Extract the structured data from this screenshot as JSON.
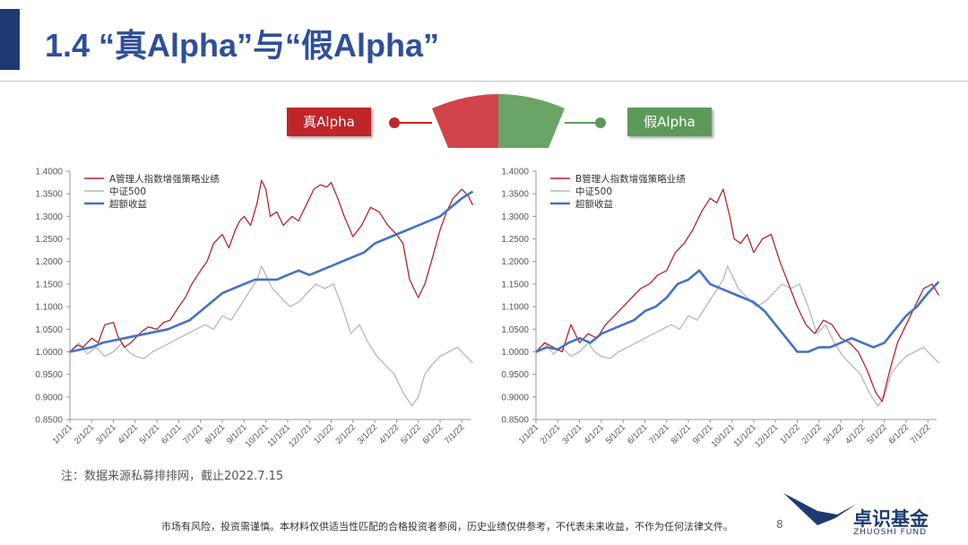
{
  "header": {
    "title": "1.4 “真Alpha”与“假Alpha”"
  },
  "tags": {
    "true_alpha": "真Alpha",
    "false_alpha": "假Alpha"
  },
  "colors": {
    "manager": "#b5242a",
    "index": "#b8b8b8",
    "excess": "#4472c4",
    "gauge_red": "#d0444a",
    "gauge_green": "#6aa467"
  },
  "note": "注：数据来源私募排排网，截止2022.7.15",
  "footer": {
    "disclaimer": "市场有风险，投资需谨慎。本材料仅供适当性匹配的合格投资者参阅，历史业绩仅供参考，不代表未来收益，不作为任何法律文件。",
    "page_number": "8"
  },
  "logo": {
    "name_cn": "卓识基金",
    "name_en": "ZHUOSHI FUND"
  },
  "chart_data": [
    {
      "type": "line",
      "ylim": [
        0.85,
        1.4
      ],
      "y_ticks": [
        "0.8500",
        "0.9000",
        "0.9500",
        "1.0000",
        "1.0500",
        "1.1000",
        "1.1500",
        "1.2000",
        "1.2500",
        "1.3000",
        "1.3500",
        "1.4000"
      ],
      "x_ticks": [
        "1/1/21",
        "2/1/21",
        "3/1/21",
        "4/1/21",
        "5/1/21",
        "6/1/21",
        "7/1/21",
        "8/1/21",
        "9/1/21",
        "10/1/21",
        "11/1/21",
        "12/1/21",
        "1/1/22",
        "2/1/22",
        "3/1/22",
        "4/1/22",
        "5/1/22",
        "6/1/22",
        "7/1/22"
      ],
      "legend_position": "top-left",
      "series": [
        {
          "name": "A管理人指数增强策略业绩",
          "color": "#b5242a",
          "x": [
            0,
            0.35,
            0.6,
            1.0,
            1.3,
            1.6,
            2.0,
            2.2,
            2.5,
            2.8,
            3.0,
            3.3,
            3.6,
            4.0,
            4.3,
            4.6,
            5.0,
            5.3,
            5.6,
            6.0,
            6.3,
            6.6,
            7.0,
            7.3,
            7.6,
            7.8,
            8.0,
            8.3,
            8.6,
            8.8,
            9.0,
            9.2,
            9.5,
            9.8,
            10.2,
            10.5,
            10.8,
            11.2,
            11.5,
            11.8,
            12.0,
            12.3,
            12.6,
            13.0,
            13.4,
            13.8,
            14.2,
            14.6,
            15.0,
            15.3,
            15.6,
            16.0,
            16.3,
            16.6,
            17.0,
            17.3,
            17.6,
            18.0,
            18.3,
            18.5
          ],
          "values": [
            1.0,
            1.015,
            1.01,
            1.03,
            1.02,
            1.06,
            1.065,
            1.035,
            1.01,
            1.02,
            1.03,
            1.045,
            1.055,
            1.05,
            1.065,
            1.07,
            1.1,
            1.12,
            1.15,
            1.18,
            1.2,
            1.24,
            1.26,
            1.23,
            1.27,
            1.29,
            1.3,
            1.28,
            1.33,
            1.38,
            1.36,
            1.3,
            1.31,
            1.28,
            1.3,
            1.29,
            1.32,
            1.36,
            1.37,
            1.365,
            1.375,
            1.34,
            1.3,
            1.255,
            1.28,
            1.32,
            1.31,
            1.28,
            1.26,
            1.24,
            1.16,
            1.12,
            1.15,
            1.2,
            1.27,
            1.31,
            1.34,
            1.36,
            1.345,
            1.325
          ]
        },
        {
          "name": "中证500",
          "color": "#b8b8b8",
          "x": [
            0,
            0.4,
            0.8,
            1.2,
            1.6,
            2.0,
            2.4,
            2.7,
            3.0,
            3.4,
            3.8,
            4.2,
            4.6,
            5.0,
            5.4,
            5.8,
            6.2,
            6.6,
            7.0,
            7.4,
            7.8,
            8.2,
            8.6,
            8.8,
            9.0,
            9.3,
            9.7,
            10.1,
            10.5,
            10.9,
            11.3,
            11.7,
            12.1,
            12.5,
            12.9,
            13.3,
            13.7,
            14.1,
            14.5,
            14.9,
            15.3,
            15.7,
            16.0,
            16.3,
            16.6,
            17.0,
            17.4,
            17.8,
            18.2,
            18.5
          ],
          "values": [
            1.0,
            1.02,
            0.995,
            1.01,
            0.99,
            1.0,
            1.02,
            1.0,
            0.99,
            0.985,
            1.0,
            1.01,
            1.02,
            1.03,
            1.04,
            1.05,
            1.06,
            1.05,
            1.08,
            1.07,
            1.1,
            1.13,
            1.16,
            1.19,
            1.17,
            1.14,
            1.12,
            1.1,
            1.11,
            1.13,
            1.15,
            1.14,
            1.15,
            1.1,
            1.04,
            1.06,
            1.02,
            0.99,
            0.97,
            0.95,
            0.91,
            0.88,
            0.9,
            0.95,
            0.97,
            0.99,
            1.0,
            1.01,
            0.99,
            0.975
          ]
        },
        {
          "name": "超额收益",
          "color": "#4472c4",
          "x": [
            0,
            0.5,
            1.0,
            1.5,
            2.0,
            2.5,
            3.0,
            3.5,
            4.0,
            4.5,
            5.0,
            5.5,
            6.0,
            6.5,
            7.0,
            7.5,
            8.0,
            8.5,
            9.0,
            9.5,
            10.0,
            10.5,
            11.0,
            11.5,
            12.0,
            12.5,
            13.0,
            13.5,
            14.0,
            14.5,
            15.0,
            15.5,
            16.0,
            16.5,
            17.0,
            17.5,
            18.0,
            18.5
          ],
          "values": [
            1.0,
            1.005,
            1.01,
            1.02,
            1.025,
            1.03,
            1.035,
            1.04,
            1.045,
            1.05,
            1.06,
            1.07,
            1.09,
            1.11,
            1.13,
            1.14,
            1.15,
            1.16,
            1.16,
            1.16,
            1.17,
            1.18,
            1.17,
            1.18,
            1.19,
            1.2,
            1.21,
            1.22,
            1.24,
            1.25,
            1.26,
            1.27,
            1.28,
            1.29,
            1.3,
            1.32,
            1.34,
            1.355
          ]
        }
      ]
    },
    {
      "type": "line",
      "ylim": [
        0.85,
        1.4
      ],
      "y_ticks": [
        "0.8500",
        "0.9000",
        "0.9500",
        "1.0000",
        "1.0500",
        "1.1000",
        "1.1500",
        "1.2000",
        "1.2500",
        "1.3000",
        "1.3500",
        "1.4000"
      ],
      "x_ticks": [
        "1/1/21",
        "2/1/21",
        "3/1/21",
        "4/1/21",
        "5/1/21",
        "6/1/21",
        "7/1/21",
        "8/1/21",
        "9/1/21",
        "10/1/21",
        "11/1/21",
        "12/1/21",
        "1/1/22",
        "2/1/22",
        "3/1/22",
        "4/1/22",
        "5/1/22",
        "6/1/22",
        "7/1/22"
      ],
      "legend_position": "top-left",
      "series": [
        {
          "name": "B管理人指数增强策略业绩",
          "color": "#b5242a",
          "x": [
            0,
            0.4,
            0.8,
            1.2,
            1.6,
            2.0,
            2.4,
            2.8,
            3.2,
            3.6,
            4.0,
            4.4,
            4.8,
            5.2,
            5.6,
            6.0,
            6.4,
            6.8,
            7.2,
            7.6,
            8.0,
            8.3,
            8.6,
            8.9,
            9.1,
            9.4,
            9.7,
            10.0,
            10.4,
            10.8,
            11.2,
            11.6,
            12.0,
            12.4,
            12.8,
            13.2,
            13.6,
            14.0,
            14.4,
            14.8,
            15.2,
            15.6,
            15.9,
            16.2,
            16.6,
            17.0,
            17.4,
            17.8,
            18.2,
            18.5
          ],
          "values": [
            1.0,
            1.02,
            1.01,
            1.0,
            1.06,
            1.02,
            1.04,
            1.03,
            1.06,
            1.08,
            1.1,
            1.12,
            1.14,
            1.15,
            1.17,
            1.18,
            1.22,
            1.24,
            1.27,
            1.31,
            1.34,
            1.33,
            1.36,
            1.3,
            1.25,
            1.24,
            1.26,
            1.22,
            1.25,
            1.26,
            1.2,
            1.15,
            1.1,
            1.06,
            1.04,
            1.07,
            1.06,
            1.03,
            1.02,
            1.0,
            0.96,
            0.91,
            0.89,
            0.95,
            1.02,
            1.06,
            1.1,
            1.14,
            1.15,
            1.125
          ]
        },
        {
          "name": "中证500",
          "color": "#b8b8b8",
          "x": [
            0,
            0.4,
            0.8,
            1.2,
            1.6,
            2.0,
            2.4,
            2.7,
            3.0,
            3.4,
            3.8,
            4.2,
            4.6,
            5.0,
            5.4,
            5.8,
            6.2,
            6.6,
            7.0,
            7.4,
            7.8,
            8.2,
            8.6,
            8.8,
            9.0,
            9.3,
            9.7,
            10.1,
            10.5,
            10.9,
            11.3,
            11.7,
            12.1,
            12.5,
            12.9,
            13.3,
            13.7,
            14.1,
            14.5,
            14.9,
            15.3,
            15.7,
            16.0,
            16.3,
            16.6,
            17.0,
            17.4,
            17.8,
            18.2,
            18.5
          ],
          "values": [
            1.0,
            1.02,
            0.995,
            1.01,
            0.99,
            1.0,
            1.02,
            1.0,
            0.99,
            0.985,
            1.0,
            1.01,
            1.02,
            1.03,
            1.04,
            1.05,
            1.06,
            1.05,
            1.08,
            1.07,
            1.1,
            1.13,
            1.16,
            1.19,
            1.17,
            1.14,
            1.12,
            1.1,
            1.11,
            1.13,
            1.15,
            1.14,
            1.15,
            1.1,
            1.04,
            1.06,
            1.02,
            0.99,
            0.97,
            0.95,
            0.91,
            0.88,
            0.9,
            0.95,
            0.97,
            0.99,
            1.0,
            1.01,
            0.99,
            0.975
          ]
        },
        {
          "name": "超额收益",
          "color": "#4472c4",
          "x": [
            0,
            0.5,
            1.0,
            1.5,
            2.0,
            2.5,
            3.0,
            3.5,
            4.0,
            4.5,
            5.0,
            5.5,
            6.0,
            6.5,
            7.0,
            7.5,
            8.0,
            8.5,
            9.0,
            9.5,
            10.0,
            10.5,
            11.0,
            11.5,
            12.0,
            12.5,
            13.0,
            13.5,
            14.0,
            14.5,
            15.0,
            15.5,
            16.0,
            16.5,
            17.0,
            17.5,
            18.0,
            18.5
          ],
          "values": [
            1.0,
            1.01,
            1.005,
            1.02,
            1.03,
            1.02,
            1.04,
            1.05,
            1.06,
            1.07,
            1.09,
            1.1,
            1.12,
            1.15,
            1.16,
            1.18,
            1.15,
            1.14,
            1.13,
            1.12,
            1.11,
            1.09,
            1.06,
            1.03,
            1.0,
            1.0,
            1.01,
            1.01,
            1.02,
            1.03,
            1.02,
            1.01,
            1.02,
            1.05,
            1.08,
            1.1,
            1.13,
            1.155
          ]
        }
      ]
    }
  ]
}
